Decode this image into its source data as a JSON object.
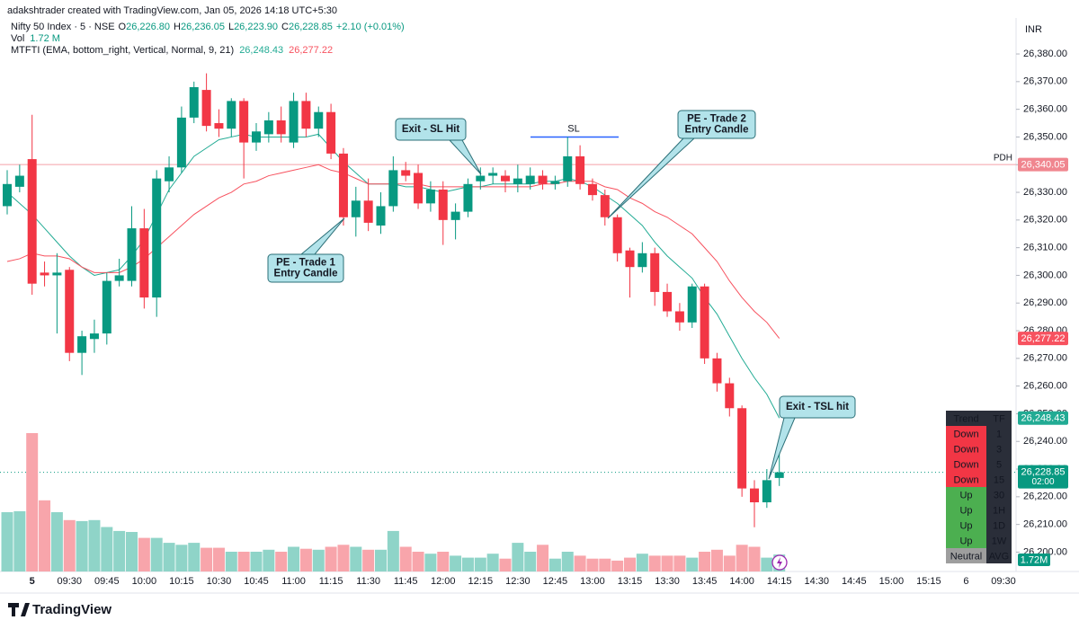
{
  "header": {
    "credit": "adakshtrader created with TradingView.com, Jan 05, 2026 14:18 UTC+5:30",
    "symbol": "Nifty 50 Index · 5 · NSE",
    "ohlc": [
      {
        "key": "O",
        "text": "26,226.80"
      },
      {
        "key": "H",
        "text": "26,236.05"
      },
      {
        "key": "L",
        "text": "26,223.90"
      },
      {
        "key": "C",
        "text": "26,228.85"
      }
    ],
    "change": "+2.10 (+0.01%)",
    "vol_label": "Vol",
    "vol_value": "1.72 M",
    "indicator": "MTFTI (EMA, bottom_right, Vertical, Normal, 9, 21)",
    "indicator_values": [
      "26,248.43",
      "26,277.22"
    ],
    "currency": "INR"
  },
  "chart_data": {
    "type": "candlestick",
    "categories": [
      null,
      null,
      "5",
      null,
      null,
      "09:30",
      null,
      null,
      "09:45",
      null,
      null,
      "10:00",
      null,
      null,
      "10:15",
      null,
      null,
      "10:30",
      null,
      null,
      "10:45",
      null,
      null,
      "11:00",
      null,
      null,
      "11:15",
      null,
      null,
      "11:30",
      null,
      null,
      "11:45",
      null,
      null,
      "12:00",
      null,
      null,
      "12:15",
      null,
      null,
      "12:30",
      null,
      null,
      "12:45",
      null,
      null,
      "13:00",
      null,
      null,
      "13:15",
      null,
      null,
      "13:30",
      null,
      null,
      "13:45",
      null,
      null,
      "14:00",
      null,
      null,
      "14:15"
    ],
    "future_labels": [
      "14:30",
      "14:45",
      "15:00",
      "15:15",
      "6",
      "09:30"
    ],
    "open": [
      26325,
      26332,
      26342,
      26301,
      26300,
      26302,
      26272,
      26277,
      26279,
      26298,
      26298,
      26317,
      26292,
      26334,
      26339,
      26357,
      26367,
      26355,
      26353,
      26363,
      26348,
      26351,
      26356,
      26348,
      26363,
      26353,
      26359,
      26344,
      26321,
      26327,
      26318,
      26325,
      26338,
      26337,
      26326,
      26331,
      26320,
      26323,
      26334,
      26336,
      26336,
      26333,
      26333,
      26336,
      26333,
      26334,
      26343,
      26333,
      26329,
      26321,
      26309,
      26303,
      26308,
      26294,
      26287,
      26283,
      26296,
      26270,
      26261,
      26252,
      26223,
      26218,
      26226.8
    ],
    "high": [
      26338,
      26340,
      26358,
      26305,
      26308,
      26303,
      26280,
      26284,
      26301,
      26306,
      26325,
      26324,
      26338,
      26343,
      26361,
      26370,
      26373,
      26360,
      26364,
      26364,
      26355,
      26359,
      26361,
      26366,
      26366,
      26361,
      26362,
      26346,
      26332,
      26335,
      26330,
      26343,
      26341,
      26340,
      26334,
      26334,
      26326,
      26335,
      26339,
      26339,
      26338,
      26340,
      26339,
      26338,
      26336,
      26350,
      26347,
      26335,
      26331,
      26322,
      26310,
      26312,
      26310,
      26297,
      26290,
      26297,
      26297,
      26272,
      26263,
      26253,
      26226,
      26230,
      26236.05
    ],
    "low": [
      26322,
      26330,
      26293,
      26296,
      26279,
      26269,
      26264,
      26272,
      26275,
      26296,
      26296,
      26288,
      26285,
      26330,
      26337,
      26355,
      26352,
      26350,
      26350,
      26335,
      26345,
      26348,
      26348,
      26346,
      26350,
      26350,
      26342,
      26318,
      26314,
      26316,
      26315,
      26323,
      26334,
      26324,
      26323,
      26311,
      26313,
      26321,
      26331,
      26333,
      26330,
      26330,
      26331,
      26331,
      26331,
      26332,
      26331,
      26327,
      26318,
      26305,
      26292,
      26301,
      26289,
      26285,
      26280,
      26281,
      26268,
      26258,
      26249,
      26220,
      26209,
      26216,
      26223.9
    ],
    "close": [
      26333,
      26336,
      26297,
      26300,
      26301,
      26272,
      26278,
      26279,
      26298,
      26300,
      26317,
      26292,
      26335,
      26339,
      26357,
      26368,
      26354,
      26353,
      26363,
      26348,
      26352,
      26356,
      26351,
      26363,
      26353,
      26359,
      26344,
      26321,
      26327,
      26319,
      26325,
      26338,
      26336,
      26326,
      26331,
      26320,
      26323,
      26333,
      26336,
      26337,
      26334,
      26335,
      26336,
      26333,
      26334,
      26343,
      26333,
      26329,
      26321,
      26308,
      26303,
      26308,
      26294,
      26287,
      26283,
      26296,
      26270,
      26261,
      26252,
      26223,
      26218,
      26226,
      26228.85
    ],
    "up_color": "#089981",
    "down_color": "#f23645",
    "volume": {
      "values": [
        6.0,
        6.1,
        14.0,
        7.2,
        6.0,
        5.2,
        5.1,
        5.2,
        4.5,
        4.1,
        4.0,
        3.4,
        3.4,
        2.9,
        2.7,
        2.9,
        2.4,
        2.4,
        2.0,
        2.0,
        2.0,
        2.2,
        2.0,
        2.5,
        2.3,
        2.2,
        2.5,
        2.7,
        2.5,
        2.2,
        2.2,
        4.1,
        2.5,
        2.0,
        1.8,
        2.0,
        1.6,
        1.4,
        1.4,
        1.8,
        1.3,
        2.9,
        2.0,
        2.7,
        1.3,
        2.0,
        1.6,
        1.3,
        1.3,
        1.1,
        1.4,
        1.8,
        1.6,
        1.6,
        1.6,
        1.4,
        2.0,
        2.2,
        1.6,
        2.7,
        2.5,
        1.4,
        1.72
      ],
      "value_label": "1.72M",
      "up_color": "#8fd4c8",
      "down_color": "#f8a5ab"
    },
    "series": [
      {
        "color": "#22ab94",
        "value_label": "26,248.43",
        "values": [
          26330,
          26326,
          26322,
          26317,
          26312,
          26307,
          26303,
          26300,
          26301,
          26302,
          26307,
          26313,
          26322,
          26331,
          26337,
          26343,
          26346,
          26349,
          26350,
          26351,
          26350,
          26350,
          26350,
          26350,
          26350,
          26351,
          26346,
          26341,
          26337,
          26333,
          26333,
          26333,
          26332,
          26332,
          26331,
          26330,
          26331,
          26332,
          26332,
          26333,
          26333,
          26333,
          26333,
          26334,
          26334,
          26335,
          26334,
          26332,
          26329,
          26326,
          26322,
          26318,
          26312,
          26307,
          26303,
          26299,
          26292,
          26286,
          26278,
          26270,
          26263,
          26257,
          26248.43
        ]
      },
      {
        "color": "#f7525f",
        "value_label": "26,277.22",
        "values": [
          26305,
          26306,
          26308,
          26307,
          26307,
          26306,
          26303,
          26301,
          26301,
          26301,
          26303,
          26306,
          26310,
          26314,
          26318,
          26322,
          26325,
          26328,
          26330,
          26333,
          26334,
          26336,
          26337,
          26338,
          26339,
          26340,
          26338,
          26337,
          26335,
          26333,
          26333,
          26333,
          26333,
          26333,
          26332,
          26332,
          26332,
          26332,
          26332,
          26332,
          26332,
          26332,
          26332,
          26333,
          26333,
          26334,
          26334,
          26334,
          26332,
          26331,
          26328,
          26326,
          26323,
          26321,
          26318,
          26315,
          26310,
          26305,
          26298,
          26292,
          26287,
          26283,
          26277.22
        ]
      }
    ],
    "ylim": [
      26193,
      26393
    ],
    "yticks": [
      {
        "value": 26200,
        "label": "26,200.00"
      },
      {
        "value": 26210,
        "label": "26,210.00"
      },
      {
        "value": 26220,
        "label": "26,220.00"
      },
      {
        "value": 26230,
        "label": "26,230.00"
      },
      {
        "value": 26240,
        "label": "26,240.00"
      },
      {
        "value": 26250,
        "label": "26,250.00"
      },
      {
        "value": 26260,
        "label": "26,260.00"
      },
      {
        "value": 26270,
        "label": "26,270.00"
      },
      {
        "value": 26280,
        "label": "26,280.00"
      },
      {
        "value": 26290,
        "label": "26,290.00"
      },
      {
        "value": 26300,
        "label": "26,300.00"
      },
      {
        "value": 26310,
        "label": "26,310.00"
      },
      {
        "value": 26320,
        "label": "26,320.00"
      },
      {
        "value": 26330,
        "label": "26,330.00"
      },
      {
        "value": 26340,
        "label": "26,340.00"
      },
      {
        "value": 26350,
        "label": "26,350.00"
      },
      {
        "value": 26360,
        "label": "26,360.00"
      },
      {
        "value": 26370,
        "label": "26,370.00"
      },
      {
        "value": 26380,
        "label": "26,380.00"
      }
    ],
    "grid": false,
    "price_lines": [
      {
        "label": "PDH",
        "value": 26340.05,
        "value_label": "26,340.05",
        "color": "#f4a0a6",
        "label_color": "#2962ff"
      },
      {
        "label": "SL",
        "value": 26350,
        "color": "#2962ff",
        "label_color": "#2962ff"
      }
    ],
    "last_price": {
      "value": 26228.85,
      "value_label": "26,228.85",
      "countdown": "02:00",
      "color": "#089981"
    },
    "annotations": [
      {
        "lines": [
          "Exit - SL Hit"
        ]
      },
      {
        "lines": [
          "PE - Trade 1",
          "Entry Candle"
        ]
      },
      {
        "lines": [
          "PE - Trade 2",
          "Entry Candle"
        ]
      },
      {
        "lines": [
          "Exit - TSL hit"
        ]
      }
    ]
  },
  "trend_table": {
    "header": [
      "Trend",
      "TF"
    ],
    "rows": [
      {
        "trend": "Down",
        "tf": "1",
        "color": "#f23645"
      },
      {
        "trend": "Down",
        "tf": "3",
        "color": "#f23645"
      },
      {
        "trend": "Down",
        "tf": "5",
        "color": "#f23645"
      },
      {
        "trend": "Down",
        "tf": "15",
        "color": "#f23645"
      },
      {
        "trend": "Up",
        "tf": "30",
        "color": "#4caf50"
      },
      {
        "trend": "Up",
        "tf": "1H",
        "color": "#4caf50"
      },
      {
        "trend": "Up",
        "tf": "1D",
        "color": "#4caf50"
      },
      {
        "trend": "Up",
        "tf": "1W",
        "color": "#4caf50"
      },
      {
        "trend": "Neutral",
        "tf": "AVG",
        "color": "#9e9e9e"
      }
    ]
  },
  "footer": {
    "brand": "TradingView"
  }
}
